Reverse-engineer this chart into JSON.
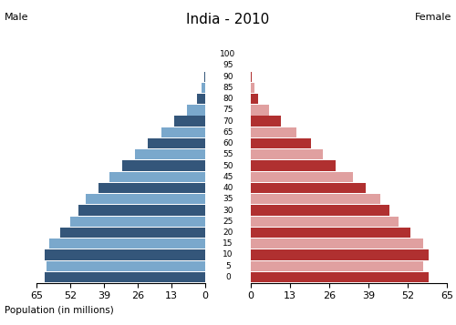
{
  "title": "India - 2010",
  "label_left": "Male",
  "label_right": "Female",
  "xlabel": "Population (in millions)",
  "age_labels": [
    "0",
    "5",
    "10",
    "15",
    "20",
    "25",
    "30",
    "35",
    "40",
    "45",
    "50",
    "55",
    "60",
    "65",
    "70",
    "75",
    "80",
    "85",
    "90",
    "95",
    "100"
  ],
  "male_values": [
    62,
    61,
    62,
    60,
    56,
    52,
    49,
    46,
    41,
    37,
    32,
    27,
    22,
    17,
    12,
    7,
    3,
    1.5,
    0.5,
    0.1,
    0.05
  ],
  "female_values": [
    59,
    57,
    59,
    57,
    53,
    49,
    46,
    43,
    38,
    34,
    28,
    24,
    20,
    15,
    10,
    6,
    2.5,
    1.2,
    0.4,
    0.1,
    0.03
  ],
  "male_color_dark": "#34567a",
  "male_color_light": "#7aa8cc",
  "female_color_dark": "#b03030",
  "female_color_light": "#e0a0a0",
  "background_color": "#ffffff",
  "xlim": 65,
  "figsize": [
    5.0,
    3.57
  ],
  "dpi": 100
}
